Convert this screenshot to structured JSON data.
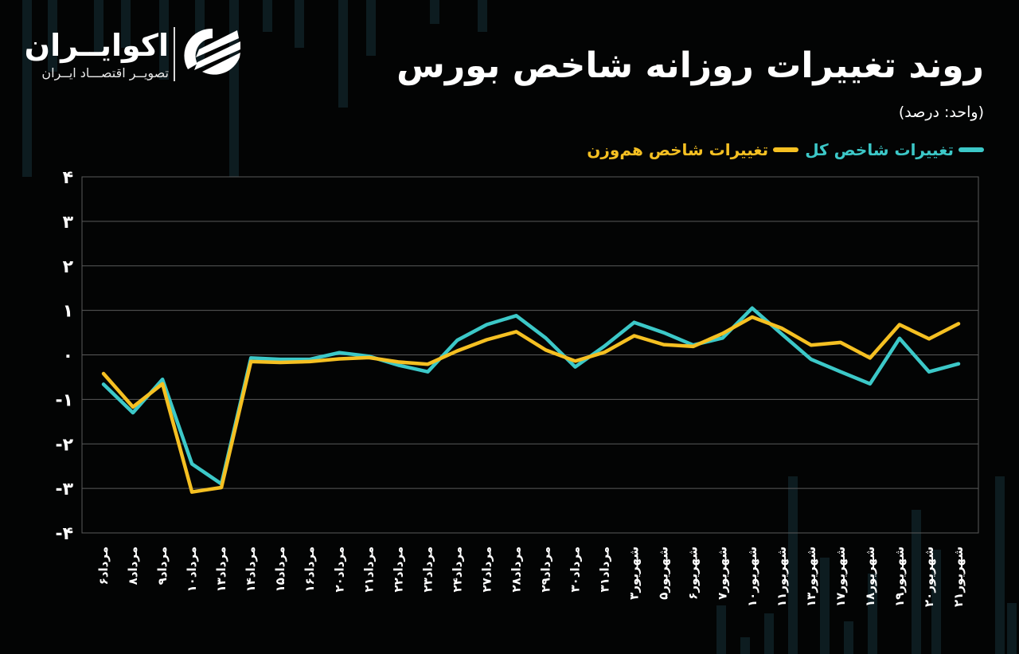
{
  "brand": {
    "name": "اکوایــران",
    "tagline": "تصویــر اقتصـــاد ایــران"
  },
  "header": {
    "title": "روند تغییرات روزانه شاخص بورس",
    "unit": "(واحد: درصد)"
  },
  "legend": [
    {
      "label": "تغییرات شاخص کل",
      "color": "#3cc8c8"
    },
    {
      "label": "تغییرات شاخص هم‌وزن",
      "color": "#f5c022"
    }
  ],
  "colors": {
    "background": "#030404",
    "grid": "#5a5a5a",
    "total_index": "#3cc8c8",
    "equal_weight": "#f5c022",
    "text": "#ffffff"
  },
  "chart_data": {
    "type": "line",
    "title": "روند تغییرات روزانه شاخص بورس",
    "subtitle": "(واحد: درصد)",
    "xlabel": "",
    "ylabel": "درصد",
    "ylim": [
      -4,
      4
    ],
    "yticks": [
      4,
      3,
      2,
      1,
      0,
      -1,
      -2,
      -3,
      -4
    ],
    "ytick_labels": [
      "۴",
      "۳",
      "۲",
      "۱",
      "۰",
      "-۱",
      "-۲",
      "-۳",
      "-۴"
    ],
    "grid": true,
    "legend_position": "top-right",
    "categories": [
      "مرداد۶",
      "مرداد۸",
      "مرداد۹",
      "مرداد۱۰",
      "مرداد۱۳",
      "مرداد۱۴",
      "مرداد۱۵",
      "مرداد۱۶",
      "مرداد۲۰",
      "مرداد۲۱",
      "مرداد۲۲",
      "مرداد۲۳",
      "مرداد۲۴",
      "مرداد۲۷",
      "مرداد۲۸",
      "مرداد۲۹",
      "مرداد۳۰",
      "مرداد۳۱",
      "شهریور۳",
      "شهریور۵",
      "شهریور۶",
      "شهریور۷",
      "شهریور۱۰",
      "شهریور۱۱",
      "شهریور۱۳",
      "شهریور۱۷",
      "شهریور۱۸",
      "شهریور۱۹",
      "شهریور۲۰",
      "شهریور۲۱"
    ],
    "series": [
      {
        "name": "تغییرات شاخص کل",
        "color": "#3cc8c8",
        "values": [
          -0.66,
          -1.3,
          -0.55,
          -2.45,
          -2.9,
          -0.07,
          -0.1,
          -0.1,
          0.05,
          -0.03,
          -0.23,
          -0.38,
          0.33,
          0.68,
          0.88,
          0.38,
          -0.27,
          0.2,
          0.73,
          0.5,
          0.22,
          0.38,
          1.05,
          0.47,
          -0.1,
          -0.38,
          -0.65,
          0.37,
          -0.38,
          -0.2
        ]
      },
      {
        "name": "تغییرات شاخص هم‌وزن",
        "color": "#f5c022",
        "values": [
          -0.42,
          -1.17,
          -0.65,
          -3.08,
          -2.98,
          -0.15,
          -0.17,
          -0.15,
          -0.09,
          -0.06,
          -0.16,
          -0.21,
          0.09,
          0.34,
          0.52,
          0.11,
          -0.14,
          0.06,
          0.43,
          0.23,
          0.19,
          0.48,
          0.85,
          0.6,
          0.22,
          0.28,
          -0.07,
          0.68,
          0.36,
          0.7
        ]
      }
    ]
  }
}
